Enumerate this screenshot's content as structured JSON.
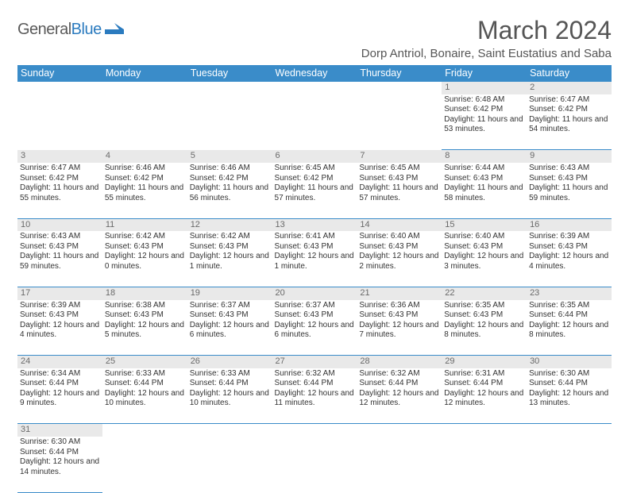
{
  "logo": {
    "word1": "General",
    "word2": "Blue",
    "flag_color": "#2b7bbf",
    "text_color": "#5a5a5a"
  },
  "title": "March 2024",
  "location": "Dorp Antriol, Bonaire, Saint Eustatius and Saba",
  "theme": {
    "header_bg": "#3a8cc9",
    "header_fg": "#ffffff",
    "daynum_bg": "#e9e9e9",
    "daynum_fg": "#6a6a6a",
    "rule": "#3a8cc9"
  },
  "weekdays": [
    "Sunday",
    "Monday",
    "Tuesday",
    "Wednesday",
    "Thursday",
    "Friday",
    "Saturday"
  ],
  "weeks": [
    [
      null,
      null,
      null,
      null,
      null,
      {
        "n": "1",
        "sr": "Sunrise: 6:48 AM",
        "ss": "Sunset: 6:42 PM",
        "dl": "Daylight: 11 hours and 53 minutes."
      },
      {
        "n": "2",
        "sr": "Sunrise: 6:47 AM",
        "ss": "Sunset: 6:42 PM",
        "dl": "Daylight: 11 hours and 54 minutes."
      }
    ],
    [
      {
        "n": "3",
        "sr": "Sunrise: 6:47 AM",
        "ss": "Sunset: 6:42 PM",
        "dl": "Daylight: 11 hours and 55 minutes."
      },
      {
        "n": "4",
        "sr": "Sunrise: 6:46 AM",
        "ss": "Sunset: 6:42 PM",
        "dl": "Daylight: 11 hours and 55 minutes."
      },
      {
        "n": "5",
        "sr": "Sunrise: 6:46 AM",
        "ss": "Sunset: 6:42 PM",
        "dl": "Daylight: 11 hours and 56 minutes."
      },
      {
        "n": "6",
        "sr": "Sunrise: 6:45 AM",
        "ss": "Sunset: 6:42 PM",
        "dl": "Daylight: 11 hours and 57 minutes."
      },
      {
        "n": "7",
        "sr": "Sunrise: 6:45 AM",
        "ss": "Sunset: 6:43 PM",
        "dl": "Daylight: 11 hours and 57 minutes."
      },
      {
        "n": "8",
        "sr": "Sunrise: 6:44 AM",
        "ss": "Sunset: 6:43 PM",
        "dl": "Daylight: 11 hours and 58 minutes."
      },
      {
        "n": "9",
        "sr": "Sunrise: 6:43 AM",
        "ss": "Sunset: 6:43 PM",
        "dl": "Daylight: 11 hours and 59 minutes."
      }
    ],
    [
      {
        "n": "10",
        "sr": "Sunrise: 6:43 AM",
        "ss": "Sunset: 6:43 PM",
        "dl": "Daylight: 11 hours and 59 minutes."
      },
      {
        "n": "11",
        "sr": "Sunrise: 6:42 AM",
        "ss": "Sunset: 6:43 PM",
        "dl": "Daylight: 12 hours and 0 minutes."
      },
      {
        "n": "12",
        "sr": "Sunrise: 6:42 AM",
        "ss": "Sunset: 6:43 PM",
        "dl": "Daylight: 12 hours and 1 minute."
      },
      {
        "n": "13",
        "sr": "Sunrise: 6:41 AM",
        "ss": "Sunset: 6:43 PM",
        "dl": "Daylight: 12 hours and 1 minute."
      },
      {
        "n": "14",
        "sr": "Sunrise: 6:40 AM",
        "ss": "Sunset: 6:43 PM",
        "dl": "Daylight: 12 hours and 2 minutes."
      },
      {
        "n": "15",
        "sr": "Sunrise: 6:40 AM",
        "ss": "Sunset: 6:43 PM",
        "dl": "Daylight: 12 hours and 3 minutes."
      },
      {
        "n": "16",
        "sr": "Sunrise: 6:39 AM",
        "ss": "Sunset: 6:43 PM",
        "dl": "Daylight: 12 hours and 4 minutes."
      }
    ],
    [
      {
        "n": "17",
        "sr": "Sunrise: 6:39 AM",
        "ss": "Sunset: 6:43 PM",
        "dl": "Daylight: 12 hours and 4 minutes."
      },
      {
        "n": "18",
        "sr": "Sunrise: 6:38 AM",
        "ss": "Sunset: 6:43 PM",
        "dl": "Daylight: 12 hours and 5 minutes."
      },
      {
        "n": "19",
        "sr": "Sunrise: 6:37 AM",
        "ss": "Sunset: 6:43 PM",
        "dl": "Daylight: 12 hours and 6 minutes."
      },
      {
        "n": "20",
        "sr": "Sunrise: 6:37 AM",
        "ss": "Sunset: 6:43 PM",
        "dl": "Daylight: 12 hours and 6 minutes."
      },
      {
        "n": "21",
        "sr": "Sunrise: 6:36 AM",
        "ss": "Sunset: 6:43 PM",
        "dl": "Daylight: 12 hours and 7 minutes."
      },
      {
        "n": "22",
        "sr": "Sunrise: 6:35 AM",
        "ss": "Sunset: 6:43 PM",
        "dl": "Daylight: 12 hours and 8 minutes."
      },
      {
        "n": "23",
        "sr": "Sunrise: 6:35 AM",
        "ss": "Sunset: 6:44 PM",
        "dl": "Daylight: 12 hours and 8 minutes."
      }
    ],
    [
      {
        "n": "24",
        "sr": "Sunrise: 6:34 AM",
        "ss": "Sunset: 6:44 PM",
        "dl": "Daylight: 12 hours and 9 minutes."
      },
      {
        "n": "25",
        "sr": "Sunrise: 6:33 AM",
        "ss": "Sunset: 6:44 PM",
        "dl": "Daylight: 12 hours and 10 minutes."
      },
      {
        "n": "26",
        "sr": "Sunrise: 6:33 AM",
        "ss": "Sunset: 6:44 PM",
        "dl": "Daylight: 12 hours and 10 minutes."
      },
      {
        "n": "27",
        "sr": "Sunrise: 6:32 AM",
        "ss": "Sunset: 6:44 PM",
        "dl": "Daylight: 12 hours and 11 minutes."
      },
      {
        "n": "28",
        "sr": "Sunrise: 6:32 AM",
        "ss": "Sunset: 6:44 PM",
        "dl": "Daylight: 12 hours and 12 minutes."
      },
      {
        "n": "29",
        "sr": "Sunrise: 6:31 AM",
        "ss": "Sunset: 6:44 PM",
        "dl": "Daylight: 12 hours and 12 minutes."
      },
      {
        "n": "30",
        "sr": "Sunrise: 6:30 AM",
        "ss": "Sunset: 6:44 PM",
        "dl": "Daylight: 12 hours and 13 minutes."
      }
    ],
    [
      {
        "n": "31",
        "sr": "Sunrise: 6:30 AM",
        "ss": "Sunset: 6:44 PM",
        "dl": "Daylight: 12 hours and 14 minutes."
      },
      null,
      null,
      null,
      null,
      null,
      null
    ]
  ]
}
